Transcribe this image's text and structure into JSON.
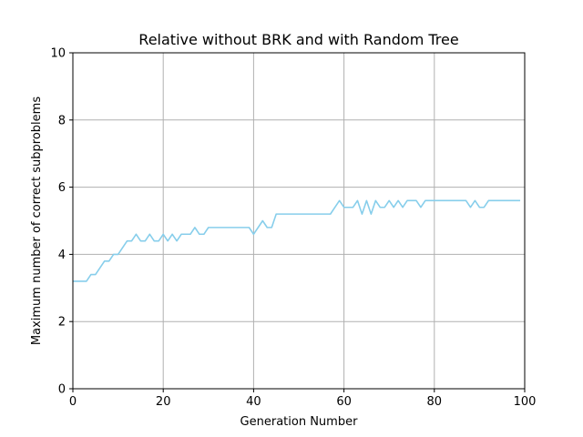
{
  "chart_data": {
    "type": "line",
    "title": "Relative without BRK and with Random Tree",
    "xlabel": "Generation Number",
    "ylabel": "Maximum number of correct subproblems",
    "xlim": [
      0,
      100
    ],
    "ylim": [
      0,
      10
    ],
    "xticks": [
      0,
      20,
      40,
      60,
      80,
      100
    ],
    "yticks": [
      0,
      2,
      4,
      6,
      8,
      10
    ],
    "grid": true,
    "series": [
      {
        "color": "#87ceeb",
        "x": [
          0,
          1,
          2,
          3,
          4,
          5,
          6,
          7,
          8,
          9,
          10,
          11,
          12,
          13,
          14,
          15,
          16,
          17,
          18,
          19,
          20,
          21,
          22,
          23,
          24,
          25,
          26,
          27,
          28,
          29,
          30,
          31,
          32,
          33,
          34,
          35,
          36,
          37,
          38,
          39,
          40,
          41,
          42,
          43,
          44,
          45,
          46,
          47,
          48,
          49,
          50,
          51,
          52,
          53,
          54,
          55,
          56,
          57,
          58,
          59,
          60,
          61,
          62,
          63,
          64,
          65,
          66,
          67,
          68,
          69,
          70,
          71,
          72,
          73,
          74,
          75,
          76,
          77,
          78,
          79,
          80,
          81,
          82,
          83,
          84,
          85,
          86,
          87,
          88,
          89,
          90,
          91,
          92,
          93,
          94,
          95,
          96,
          97,
          98,
          99
        ],
        "y": [
          3.2,
          3.2,
          3.2,
          3.2,
          3.4,
          3.4,
          3.6,
          3.8,
          3.8,
          4.0,
          4.0,
          4.2,
          4.4,
          4.4,
          4.6,
          4.4,
          4.4,
          4.6,
          4.4,
          4.4,
          4.6,
          4.4,
          4.6,
          4.4,
          4.6,
          4.6,
          4.6,
          4.8,
          4.6,
          4.6,
          4.8,
          4.8,
          4.8,
          4.8,
          4.8,
          4.8,
          4.8,
          4.8,
          4.8,
          4.8,
          4.6,
          4.8,
          5.0,
          4.8,
          4.8,
          5.2,
          5.2,
          5.2,
          5.2,
          5.2,
          5.2,
          5.2,
          5.2,
          5.2,
          5.2,
          5.2,
          5.2,
          5.2,
          5.4,
          5.6,
          5.4,
          5.4,
          5.4,
          5.6,
          5.2,
          5.6,
          5.2,
          5.6,
          5.4,
          5.4,
          5.6,
          5.4,
          5.6,
          5.4,
          5.6,
          5.6,
          5.6,
          5.4,
          5.6,
          5.6,
          5.6,
          5.6,
          5.6,
          5.6,
          5.6,
          5.6,
          5.6,
          5.6,
          5.4,
          5.6,
          5.4,
          5.4,
          5.6,
          5.6,
          5.6,
          5.6,
          5.6,
          5.6,
          5.6,
          5.6
        ]
      }
    ]
  }
}
